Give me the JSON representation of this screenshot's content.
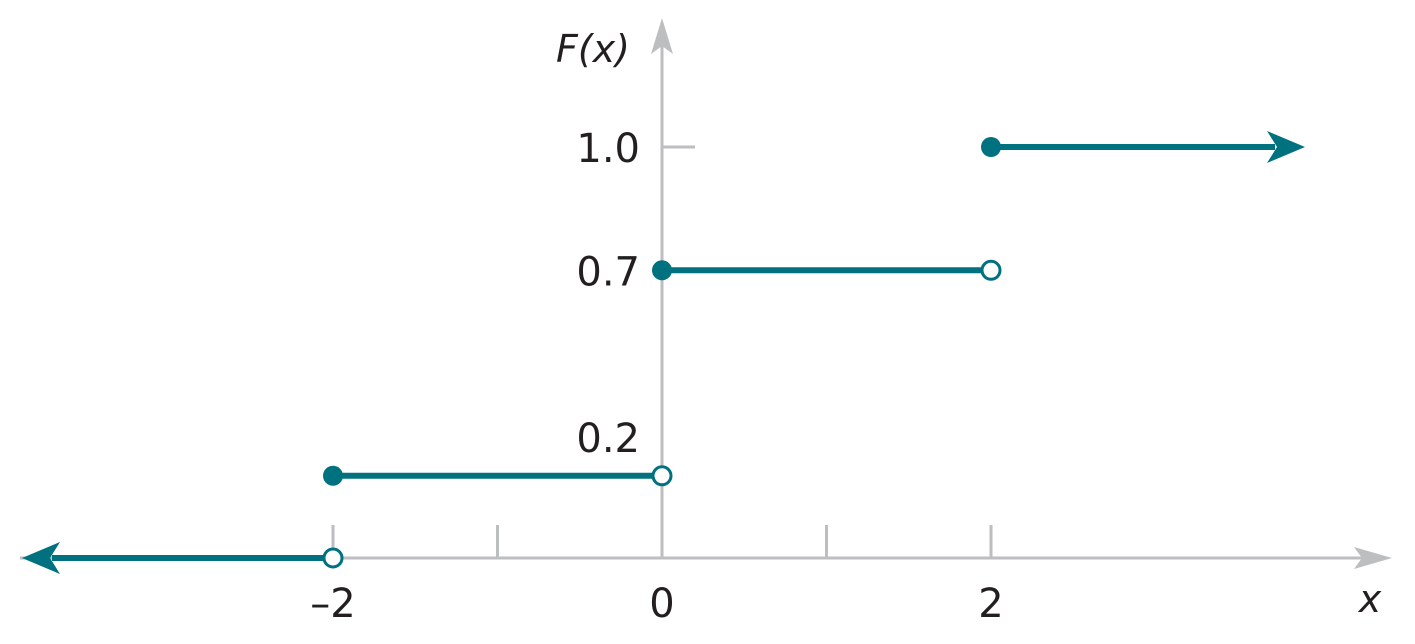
{
  "chart_data": {
    "type": "line",
    "xlabel": "x",
    "ylabel": "F(x)",
    "x_ticks": [
      -2,
      -1,
      0,
      1,
      2
    ],
    "x_tick_labels": [
      {
        "value": -2,
        "label": "–2"
      },
      {
        "value": 0,
        "label": "0"
      },
      {
        "value": 2,
        "label": "2"
      }
    ],
    "y_tick_labels": [
      {
        "value": 1.0,
        "label": "1.0"
      },
      {
        "value": 0.7,
        "label": "0.7"
      },
      {
        "value": 0.2,
        "label": "0.2"
      }
    ],
    "segments": [
      {
        "x_start": null,
        "x_end": -2,
        "y": 0,
        "start": "arrow",
        "end": "open"
      },
      {
        "x_start": -2,
        "x_end": 0,
        "y": 0.2,
        "start": "closed",
        "end": "open"
      },
      {
        "x_start": 0,
        "x_end": 2,
        "y": 0.7,
        "start": "closed",
        "end": "open"
      },
      {
        "x_start": 2,
        "x_end": null,
        "y": 1.0,
        "start": "closed",
        "end": "arrow"
      }
    ],
    "colors": {
      "series": "#00717f",
      "axis": "#bcbec0",
      "text": "#231f20"
    }
  }
}
